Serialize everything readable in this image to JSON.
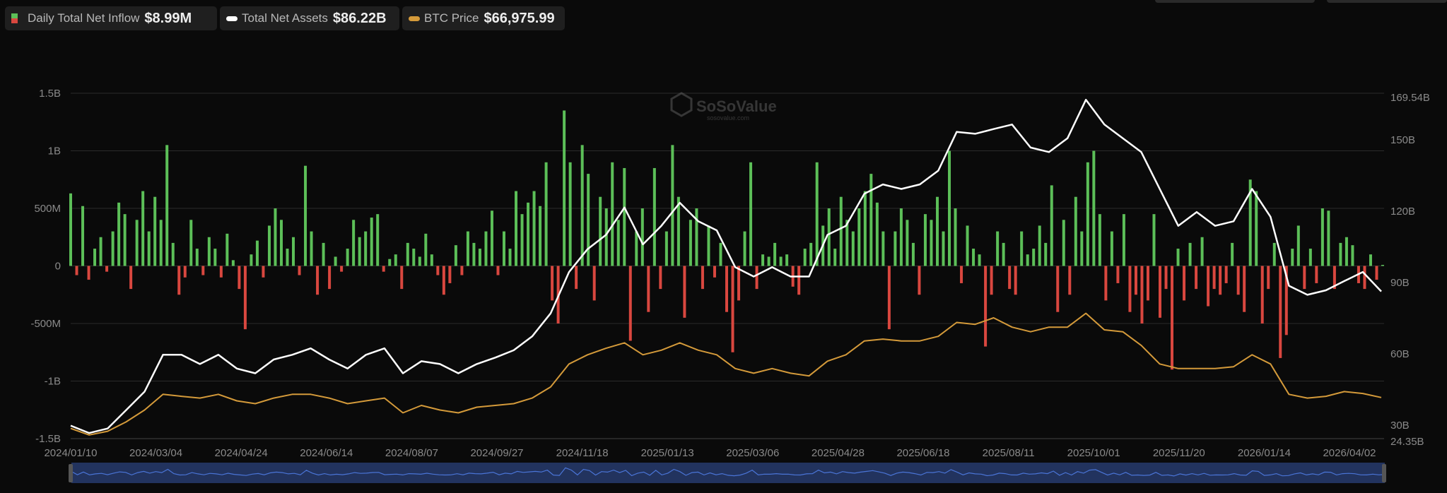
{
  "legend": {
    "inflow": {
      "label": "Daily Total Net Inflow",
      "value": "$8.99M"
    },
    "assets": {
      "label": "Total Net Assets",
      "value": "$86.22B"
    },
    "btc": {
      "label": "BTC Price",
      "value": "$66,975.99"
    }
  },
  "watermark": {
    "name": "SoSoValue",
    "url": "sosovalue.com"
  },
  "colors": {
    "inflow_pos": "#5cbf58",
    "inflow_neg": "#d9473f",
    "assets": "#ffffff",
    "btc": "#d49a3a",
    "grid": "#2b2b2b",
    "navigator": "#22335e",
    "navigator_line": "#4a74d6"
  },
  "chart_data": {
    "type": "bar+line",
    "x_tick_labels": [
      "2024/01/10",
      "2024/03/04",
      "2024/04/24",
      "2024/06/14",
      "2024/08/07",
      "2024/09/27",
      "2024/11/18",
      "2025/01/13",
      "2025/03/06",
      "2025/04/28",
      "2025/06/18",
      "2025/08/11",
      "2025/10/01",
      "2025/11/20",
      "2026/01/14",
      "2026/04/02"
    ],
    "left_axis": {
      "ticks": [
        "1.5B",
        "1B",
        "500M",
        "0",
        "-500M",
        "-1B",
        "-1.5B"
      ],
      "range_musd": [
        -1500,
        1500
      ]
    },
    "right_axis": {
      "ticks": [
        {
          "v": 169.54,
          "label": "169.54B"
        },
        {
          "v": 150,
          "label": "150B"
        },
        {
          "v": 120,
          "label": "120B"
        },
        {
          "v": 90,
          "label": "90B"
        },
        {
          "v": 60,
          "label": "60B"
        },
        {
          "v": 30,
          "label": "30B"
        },
        {
          "v": 24.35,
          "label": "24.35B"
        }
      ],
      "range_busd": [
        24.35,
        169.54
      ]
    },
    "btc_hidden_axis_range_usd": [
      39136,
      273000
    ],
    "series": [
      {
        "name": "Daily Total Net Inflow",
        "unit": "M USD",
        "type": "bar",
        "values": [
          630,
          -80,
          520,
          -120,
          150,
          250,
          -50,
          300,
          550,
          450,
          -200,
          400,
          650,
          300,
          600,
          400,
          1050,
          200,
          -250,
          -100,
          400,
          150,
          -80,
          250,
          150,
          -100,
          280,
          50,
          -200,
          -550,
          100,
          220,
          -100,
          350,
          500,
          400,
          150,
          250,
          -80,
          870,
          300,
          -250,
          200,
          -200,
          80,
          -50,
          150,
          400,
          250,
          300,
          420,
          450,
          -50,
          60,
          100,
          -200,
          200,
          150,
          80,
          280,
          100,
          -80,
          -250,
          -150,
          180,
          -80,
          300,
          200,
          150,
          300,
          480,
          -80,
          300,
          150,
          650,
          450,
          550,
          650,
          520,
          900,
          -300,
          -500,
          1350,
          900,
          -200,
          1050,
          800,
          -300,
          600,
          500,
          900,
          400,
          850,
          -650,
          300,
          500,
          -400,
          850,
          -200,
          300,
          1050,
          600,
          -450,
          400,
          500,
          -200,
          350,
          -100,
          200,
          -400,
          -750,
          -300,
          300,
          900,
          -200,
          100,
          80,
          200,
          80,
          100,
          -180,
          -250,
          150,
          200,
          900,
          350,
          500,
          150,
          600,
          400,
          300,
          500,
          650,
          800,
          550,
          300,
          -550,
          300,
          500,
          400,
          200,
          -250,
          450,
          400,
          600,
          300,
          1000,
          500,
          -150,
          350,
          150,
          100,
          -700,
          -250,
          300,
          200,
          -200,
          -250,
          300,
          100,
          150,
          350,
          200,
          700,
          -400,
          400,
          -250,
          600,
          300,
          900,
          1000,
          450,
          -300,
          300,
          -150,
          450,
          -400,
          -250,
          -500,
          -300,
          450,
          -450,
          -200,
          -900,
          150,
          -300,
          200,
          -200,
          250,
          -350,
          -200,
          -250,
          -150,
          200,
          -250,
          -400,
          750,
          650,
          -500,
          -200,
          200,
          -800,
          -600,
          150,
          350,
          -200,
          150,
          -150,
          500,
          480,
          -200,
          200,
          250,
          180,
          -150,
          -200,
          100,
          -120,
          9
        ]
      },
      {
        "name": "Total Net Assets",
        "unit": "B USD",
        "type": "line",
        "values": [
          29.8,
          26.7,
          28.6,
          36.3,
          44.1,
          59.6,
          59.6,
          55.7,
          59.6,
          53.8,
          51.8,
          57.6,
          59.6,
          62.3,
          57.6,
          53.8,
          59.6,
          62.3,
          51.8,
          56.9,
          55.7,
          51.8,
          55.7,
          58.4,
          61.5,
          67.3,
          77,
          94.4,
          104,
          110,
          121.5,
          106,
          113.8,
          123.5,
          115.7,
          111.9,
          96.4,
          92.5,
          96.4,
          92.5,
          92.5,
          110,
          113.8,
          127.3,
          131.2,
          129.3,
          131.2,
          137,
          153.3,
          152.5,
          154.5,
          156.4,
          146.7,
          144.8,
          150.6,
          166.8,
          156.4,
          150.6,
          144.8,
          129.3,
          113.8,
          119.6,
          113.8,
          115.7,
          129.3,
          117.6,
          88.6,
          84.8,
          86.7,
          90.6,
          94.4,
          86.22
        ]
      },
      {
        "name": "BTC Price",
        "unit": "USD",
        "type": "line",
        "values": [
          46000,
          41600,
          44100,
          50400,
          58500,
          69100,
          67800,
          66600,
          69100,
          64700,
          62800,
          66600,
          69100,
          69100,
          66600,
          62800,
          64700,
          66600,
          56600,
          61600,
          58500,
          56600,
          60400,
          61600,
          62800,
          66600,
          74100,
          89700,
          95900,
          100300,
          104000,
          95900,
          99000,
          104000,
          99000,
          95900,
          86600,
          83400,
          86600,
          83400,
          81600,
          91600,
          95900,
          105300,
          106500,
          105300,
          105300,
          108400,
          117800,
          116500,
          120900,
          114600,
          111500,
          114600,
          114600,
          124000,
          112800,
          111500,
          102200,
          89700,
          86600,
          86600,
          86600,
          87800,
          95900,
          89700,
          69100,
          66600,
          67800,
          71000,
          69700,
          66976
        ]
      }
    ],
    "grid": true,
    "legend_placement": "top-left"
  }
}
